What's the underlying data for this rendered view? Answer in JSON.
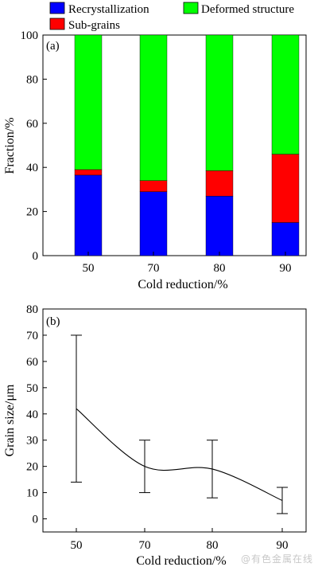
{
  "watermark": "@有色金属在线",
  "chart_data": [
    {
      "panel_label": "(a)",
      "type": "bar",
      "stacked": true,
      "categories": [
        "50",
        "70",
        "80",
        "90"
      ],
      "series": [
        {
          "name": "Recrystallization",
          "color": "#0000ff",
          "values": [
            36.5,
            29,
            27,
            15
          ]
        },
        {
          "name": "Sub-grains",
          "color": "#ff0000",
          "values": [
            2.5,
            5,
            11.5,
            31
          ]
        },
        {
          "name": "Deformed structure",
          "color": "#00ff00",
          "values": [
            61,
            66,
            61.5,
            54
          ]
        }
      ],
      "xlabel": "Cold reduction/%",
      "ylabel": "Fraction/%",
      "ylim": [
        0,
        100
      ],
      "yticks": [
        0,
        20,
        40,
        60,
        80,
        100
      ],
      "legend_position": "top"
    },
    {
      "panel_label": "(b)",
      "type": "line",
      "x": [
        50,
        70,
        80,
        90
      ],
      "y": [
        42,
        20,
        19,
        7
      ],
      "error_low": [
        14,
        10,
        8,
        2
      ],
      "error_high": [
        70,
        30,
        30,
        12
      ],
      "xlabel": "Cold reduction/%",
      "ylabel": "Grain size/μm",
      "xticks": [
        50,
        70,
        80,
        90
      ],
      "ylim": [
        -5,
        80
      ],
      "yticks": [
        0,
        10,
        20,
        30,
        40,
        50,
        60,
        70,
        80
      ]
    }
  ]
}
